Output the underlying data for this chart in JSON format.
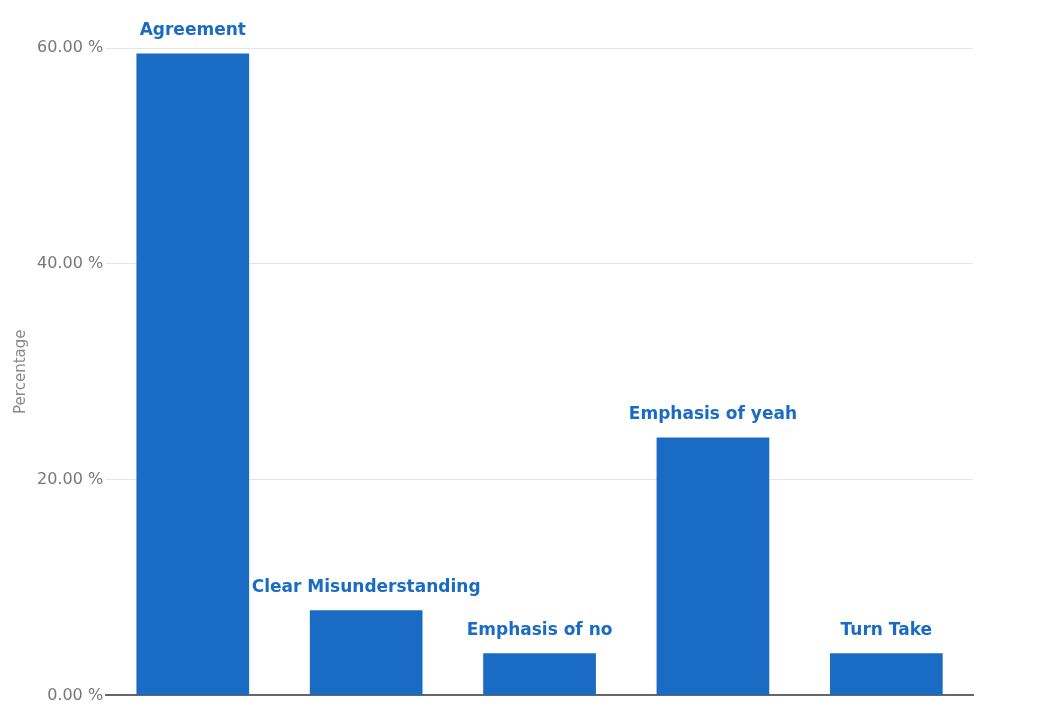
{
  "chart_data": {
    "type": "bar",
    "ylabel": "Percentage",
    "categories": [
      "Agreement",
      "Clear Misunderstanding",
      "Emphasis of no",
      "Emphasis of yeah",
      "Turn Take"
    ],
    "values": [
      59.5,
      7.9,
      3.9,
      23.9,
      3.9
    ],
    "color": "#1a6bc4",
    "ylim": [
      0,
      60
    ],
    "yticks": [
      {
        "value": 0,
        "label": "0.00 %"
      },
      {
        "value": 20,
        "label": "20.00 %"
      },
      {
        "value": 40,
        "label": "40.00 %"
      },
      {
        "value": 60,
        "label": "60.00 %"
      }
    ],
    "grid": "y"
  }
}
